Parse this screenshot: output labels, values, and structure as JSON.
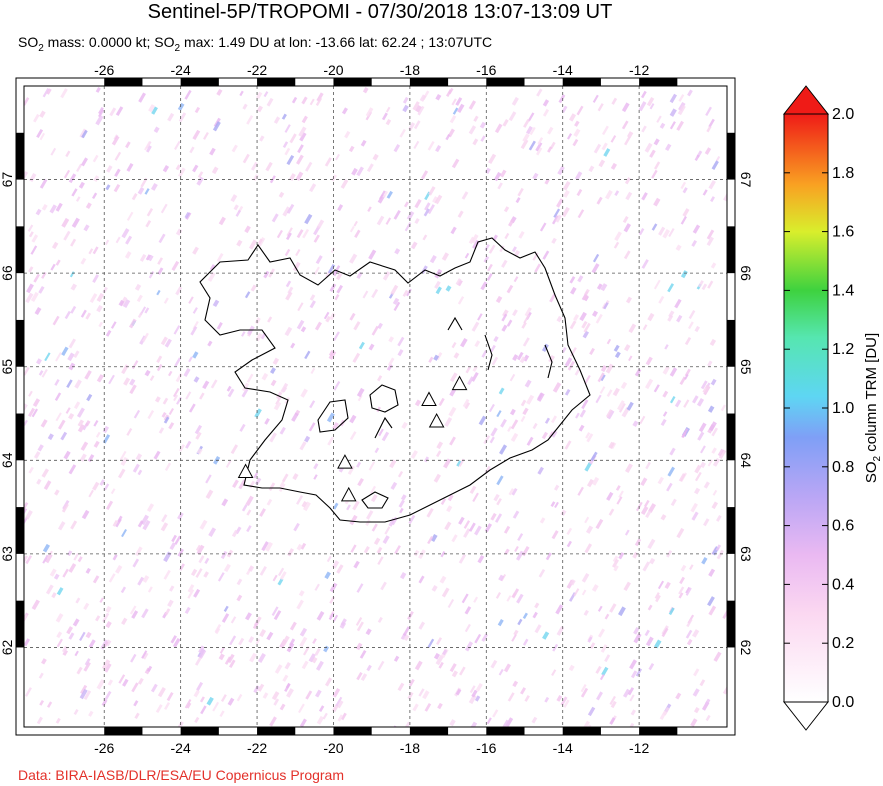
{
  "header": {
    "title": "Sentinel-5P/TROPOMI - 07/30/2018 13:07-13:09 UT",
    "subtitle_parts": [
      {
        "t": "SO",
        "sub": false
      },
      {
        "t": "2",
        "sub": true
      },
      {
        "t": " mass: 0.0000 kt; SO",
        "sub": false
      },
      {
        "t": "2",
        "sub": true
      },
      {
        "t": " max: 1.49 DU at lon: -13.66 lat: 62.24 ; 13:07UTC",
        "sub": false
      }
    ]
  },
  "map": {
    "lon_ticks": [
      "-26",
      "-24",
      "-22",
      "-20",
      "-18",
      "-16",
      "-14",
      "-12"
    ],
    "lat_ticks": [
      "67",
      "66",
      "65",
      "64",
      "63",
      "62"
    ],
    "lon_range": [
      -28.1,
      -9.7
    ],
    "lat_range": [
      61.15,
      68.0
    ],
    "volcano_markers": [
      {
        "lon": -22.3,
        "lat": 63.88
      },
      {
        "lon": -19.7,
        "lat": 63.98
      },
      {
        "lon": -19.6,
        "lat": 63.63
      },
      {
        "lon": -17.5,
        "lat": 64.65
      },
      {
        "lon": -17.3,
        "lat": 64.42
      },
      {
        "lon": -16.7,
        "lat": 64.82
      }
    ]
  },
  "colorbar": {
    "label_main": "SO",
    "label_sub": "2",
    "label_rest": " column TRM [DU]",
    "ticks": [
      "2.0",
      "1.8",
      "1.6",
      "1.4",
      "1.2",
      "1.0",
      "0.8",
      "0.6",
      "0.4",
      "0.2",
      "0.0"
    ],
    "range": [
      0.0,
      2.0
    ]
  },
  "footer": {
    "credit": "Data: BIRA-IASB/DLR/ESA/EU Copernicus Program"
  }
}
